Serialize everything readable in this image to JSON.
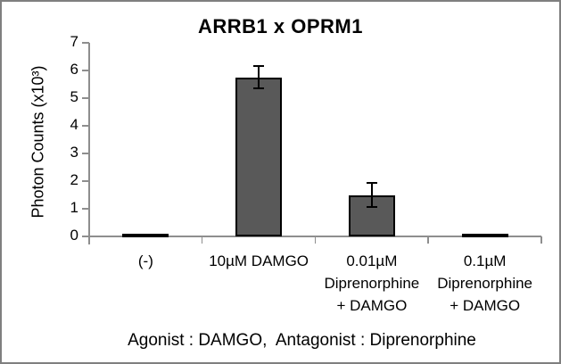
{
  "window": {
    "background": "#ffffff",
    "frame_color": "#7f7f7f"
  },
  "chart_data": {
    "type": "bar",
    "title": "ARRB1 x OPRM1",
    "ylabel": "Photon Counts (x10³)",
    "xlabel": "",
    "categories": [
      "(-)",
      "10µM DAMGO",
      "0.01µM Diprenorphine + DAMGO",
      "0.1µM Diprenorphine + DAMGO"
    ],
    "category_lines": [
      [
        "(-)"
      ],
      [
        "10µM DAMGO"
      ],
      [
        "0.01µM",
        "Diprenorphine",
        "+ DAMGO"
      ],
      [
        "0.1µM",
        "Diprenorphine",
        "+ DAMGO"
      ]
    ],
    "values": [
      0.05,
      5.75,
      1.5,
      0.05
    ],
    "error_bars": [
      0,
      0.4,
      0.45,
      0
    ],
    "ylim": [
      0,
      7
    ],
    "yticks": [
      0,
      1,
      2,
      3,
      4,
      5,
      6,
      7
    ],
    "grid": false,
    "legend": null,
    "bar_color": "#595959",
    "bar_border_color": "#000000",
    "error_bar_color": "#000000",
    "axis_color": "#8e8e8e",
    "text_color": "#000000"
  },
  "caption": "Agonist : DAMGO,  Antagonist : Diprenorphine"
}
